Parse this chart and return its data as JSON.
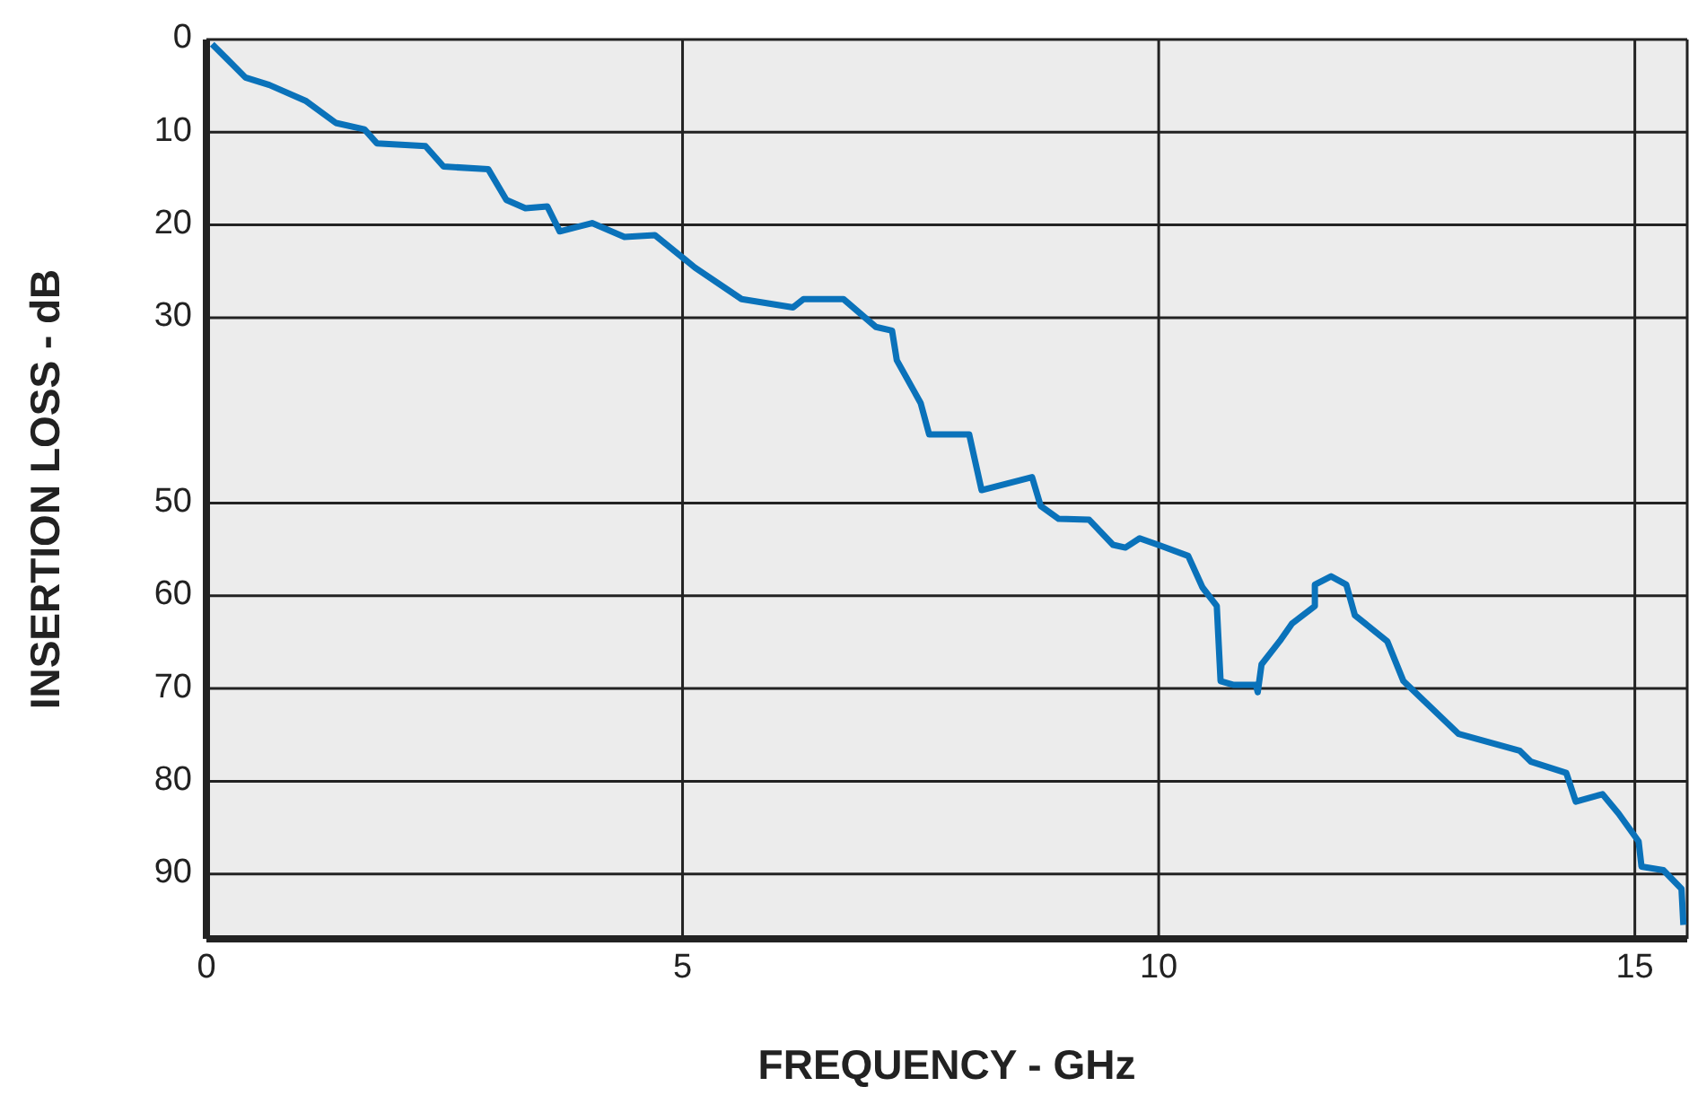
{
  "chart_data": {
    "type": "line",
    "xlabel": "FREQUENCY - GHz",
    "ylabel": "INSERTION LOSS - dB",
    "xlim": [
      0,
      15.55
    ],
    "xticks": [
      0,
      5,
      10,
      15
    ],
    "ylim": [
      97,
      0
    ],
    "yticks": [
      0,
      10,
      20,
      30,
      50,
      60,
      70,
      80,
      90
    ],
    "grid": true,
    "marker": "none",
    "line_style": "solid",
    "series": [
      {
        "color": "#0a72ba",
        "x": [
          0.06,
          0.41,
          0.66,
          1.04,
          1.36,
          1.66,
          1.79,
          2.3,
          2.49,
          2.96,
          3.15,
          3.35,
          3.58,
          3.71,
          4.05,
          4.39,
          4.71,
          5.13,
          5.62,
          6.16,
          6.27,
          6.69,
          7.03,
          7.2,
          7.25,
          7.5,
          7.59,
          8.01,
          8.14,
          8.67,
          8.76,
          8.95,
          9.27,
          9.52,
          9.65,
          9.8,
          10.02,
          10.31,
          10.46,
          10.61,
          10.65,
          10.78,
          11.02,
          11.04,
          11.08,
          11.27,
          11.4,
          11.64,
          11.64,
          11.81,
          11.97,
          12.06,
          12.4,
          12.57,
          13.15,
          13.79,
          13.91,
          14.28,
          14.38,
          14.66,
          14.83,
          15.04,
          15.07,
          15.3,
          15.49,
          15.51
        ],
        "values": [
          0.5,
          4.1,
          4.9,
          6.6,
          9.0,
          9.7,
          11.2,
          11.5,
          13.7,
          14.0,
          17.3,
          18.2,
          18.0,
          20.7,
          19.8,
          21.3,
          21.1,
          24.6,
          28.0,
          28.9,
          28.0,
          28.0,
          31.0,
          31.4,
          34.6,
          39.2,
          42.6,
          42.6,
          48.6,
          47.2,
          50.3,
          51.7,
          51.8,
          54.5,
          54.8,
          53.8,
          54.6,
          55.7,
          59.1,
          61.1,
          69.2,
          69.6,
          69.6,
          70.4,
          67.4,
          64.9,
          63.0,
          61.1,
          58.8,
          57.9,
          58.8,
          62.1,
          64.9,
          69.2,
          74.9,
          76.7,
          77.9,
          79.1,
          82.2,
          81.4,
          83.5,
          86.5,
          89.2,
          89.6,
          91.6,
          95.5
        ]
      }
    ]
  }
}
